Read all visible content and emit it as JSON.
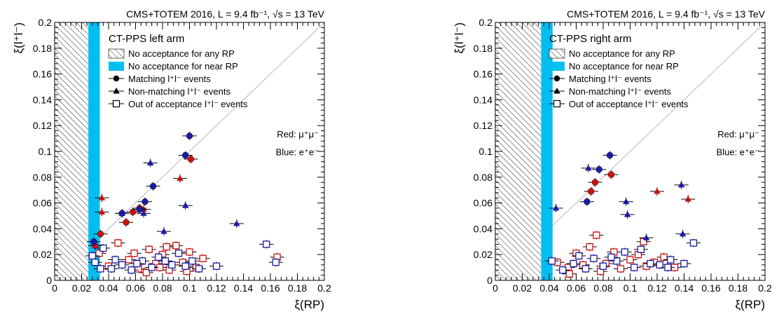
{
  "colors": {
    "red": "#cc1111",
    "blue": "#1a1aa8",
    "cyan": "#00bff0",
    "diag": "#c8c8c8"
  },
  "chart_data": [
    {
      "type": "scatter",
      "title": "CMS+TOTEM 2016, L = 9.4 fb⁻¹, √s = 13 TeV",
      "arm_label": "CT-PPS left arm",
      "xlabel": "ξ(RP)",
      "ylabel": "ξ(l⁺l⁻)",
      "xlim": [
        0,
        0.2
      ],
      "ylim": [
        0,
        0.2
      ],
      "xticks": [
        "0",
        "0.02",
        "0.04",
        "0.06",
        "0.08",
        "0.1",
        "0.12",
        "0.14",
        "0.16",
        "0.18",
        "0.2"
      ],
      "yticks": [
        "0",
        "0.02",
        "0.04",
        "0.06",
        "0.08",
        "0.1",
        "0.12",
        "0.14",
        "0.16",
        "0.18",
        "0.2"
      ],
      "no_acceptance_any_rp_xmax": 0.025,
      "no_acceptance_near_rp": [
        0.025,
        0.0335
      ],
      "legend": {
        "hatch": "No acceptance for any RP",
        "cyan": "No acceptance for near RP",
        "circle": "Matching l⁺l⁻ events",
        "triangle": "Non-matching l⁺l⁻ events",
        "square": "Out of acceptance l⁺l⁻ events"
      },
      "notes": {
        "red": "Red: μ⁺μ⁻",
        "blue": "Blue: e⁺e⁻"
      },
      "matching_red": [
        [
          0.101,
          0.094
        ],
        [
          0.063,
          0.056
        ],
        [
          0.058,
          0.053
        ],
        [
          0.053,
          0.045
        ],
        [
          0.034,
          0.036
        ],
        [
          0.03,
          0.027
        ]
      ],
      "matching_blue": [
        [
          0.1,
          0.112
        ],
        [
          0.097,
          0.097
        ],
        [
          0.073,
          0.073
        ],
        [
          0.067,
          0.061
        ],
        [
          0.063,
          0.055
        ],
        [
          0.05,
          0.052
        ],
        [
          0.029,
          0.03
        ]
      ],
      "nonmatching_red": [
        [
          0.035,
          0.064
        ],
        [
          0.035,
          0.053
        ],
        [
          0.093,
          0.079
        ],
        [
          0.066,
          0.055
        ]
      ],
      "nonmatching_blue": [
        [
          0.071,
          0.091
        ],
        [
          0.097,
          0.058
        ],
        [
          0.135,
          0.044
        ],
        [
          0.081,
          0.038
        ],
        [
          0.066,
          0.052
        ],
        [
          0.05,
          0.052
        ]
      ],
      "out_red": [
        [
          0.033,
          0.021
        ],
        [
          0.04,
          0.011
        ],
        [
          0.047,
          0.029
        ],
        [
          0.055,
          0.016
        ],
        [
          0.062,
          0.009
        ],
        [
          0.07,
          0.024
        ],
        [
          0.075,
          0.013
        ],
        [
          0.08,
          0.02
        ],
        [
          0.085,
          0.008
        ],
        [
          0.09,
          0.027
        ],
        [
          0.095,
          0.014
        ],
        [
          0.1,
          0.022
        ],
        [
          0.105,
          0.01
        ],
        [
          0.11,
          0.017
        ],
        [
          0.068,
          0.006
        ],
        [
          0.083,
          0.026
        ],
        [
          0.098,
          0.007
        ],
        [
          0.165,
          0.018
        ],
        [
          0.059,
          0.021
        ],
        [
          0.078,
          0.01
        ]
      ],
      "out_blue": [
        [
          0.028,
          0.019
        ],
        [
          0.03,
          0.014
        ],
        [
          0.036,
          0.025
        ],
        [
          0.042,
          0.009
        ],
        [
          0.05,
          0.012
        ],
        [
          0.057,
          0.008
        ],
        [
          0.065,
          0.015
        ],
        [
          0.072,
          0.01
        ],
        [
          0.077,
          0.018
        ],
        [
          0.087,
          0.012
        ],
        [
          0.092,
          0.021
        ],
        [
          0.102,
          0.015
        ],
        [
          0.107,
          0.009
        ],
        [
          0.12,
          0.011
        ],
        [
          0.157,
          0.028
        ],
        [
          0.164,
          0.014
        ],
        [
          0.045,
          0.016
        ],
        [
          0.061,
          0.013
        ],
        [
          0.082,
          0.015
        ],
        [
          0.097,
          0.011
        ],
        [
          0.034,
          0.009
        ]
      ]
    },
    {
      "type": "scatter",
      "title": "CMS+TOTEM 2016, L = 9.4 fb⁻¹, √s = 13 TeV",
      "arm_label": "CT-PPS right arm",
      "xlabel": "ξ(RP)",
      "ylabel": "ξ(l⁺l⁻)",
      "xlim": [
        0,
        0.2
      ],
      "ylim": [
        0,
        0.2
      ],
      "xticks": [
        "0",
        "0.02",
        "0.04",
        "0.06",
        "0.08",
        "0.1",
        "0.12",
        "0.14",
        "0.16",
        "0.18",
        "0.2"
      ],
      "yticks": [
        "0",
        "0.02",
        "0.04",
        "0.06",
        "0.08",
        "0.1",
        "0.12",
        "0.14",
        "0.16",
        "0.18",
        "0.2"
      ],
      "no_acceptance_any_rp_xmax": 0.034,
      "no_acceptance_near_rp": [
        0.034,
        0.0425
      ],
      "legend": {
        "hatch": "No acceptance for any RP",
        "cyan": "No acceptance for near RP",
        "circle": "Matching l⁺l⁻ events",
        "triangle": "Non-matching l⁺l⁻ events",
        "square": "Out of acceptance l⁺l⁻ events"
      },
      "notes": {
        "red": "Red: μ⁺μ⁻",
        "blue": "Blue: e⁺e⁻"
      },
      "matching_red": [
        [
          0.074,
          0.076
        ],
        [
          0.086,
          0.082
        ],
        [
          0.071,
          0.069
        ]
      ],
      "matching_blue": [
        [
          0.085,
          0.097
        ],
        [
          0.077,
          0.086
        ],
        [
          0.068,
          0.061
        ]
      ],
      "nonmatching_red": [
        [
          0.12,
          0.069
        ],
        [
          0.143,
          0.063
        ]
      ],
      "nonmatching_blue": [
        [
          0.069,
          0.087
        ],
        [
          0.045,
          0.056
        ],
        [
          0.097,
          0.061
        ],
        [
          0.138,
          0.074
        ],
        [
          0.098,
          0.051
        ],
        [
          0.139,
          0.036
        ],
        [
          0.112,
          0.033
        ]
      ],
      "out_red": [
        [
          0.046,
          0.014
        ],
        [
          0.054,
          0.01
        ],
        [
          0.06,
          0.021
        ],
        [
          0.065,
          0.012
        ],
        [
          0.07,
          0.026
        ],
        [
          0.075,
          0.035
        ],
        [
          0.082,
          0.013
        ],
        [
          0.088,
          0.022
        ],
        [
          0.093,
          0.009
        ],
        [
          0.1,
          0.016
        ],
        [
          0.106,
          0.02
        ],
        [
          0.112,
          0.011
        ],
        [
          0.118,
          0.014
        ],
        [
          0.125,
          0.018
        ],
        [
          0.133,
          0.01
        ],
        [
          0.055,
          0.005
        ],
        [
          0.11,
          0.03
        ],
        [
          0.078,
          0.007
        ]
      ],
      "out_blue": [
        [
          0.042,
          0.015
        ],
        [
          0.05,
          0.008
        ],
        [
          0.058,
          0.013
        ],
        [
          0.067,
          0.009
        ],
        [
          0.073,
          0.017
        ],
        [
          0.08,
          0.011
        ],
        [
          0.09,
          0.015
        ],
        [
          0.096,
          0.022
        ],
        [
          0.103,
          0.01
        ],
        [
          0.115,
          0.013
        ],
        [
          0.122,
          0.012
        ],
        [
          0.13,
          0.016
        ],
        [
          0.14,
          0.013
        ],
        [
          0.147,
          0.029
        ],
        [
          0.062,
          0.019
        ],
        [
          0.086,
          0.018
        ],
        [
          0.128,
          0.01
        ],
        [
          0.108,
          0.024
        ]
      ]
    }
  ]
}
